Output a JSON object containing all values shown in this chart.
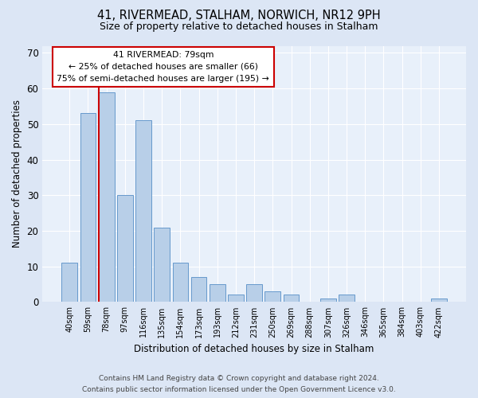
{
  "title1": "41, RIVERMEAD, STALHAM, NORWICH, NR12 9PH",
  "title2": "Size of property relative to detached houses in Stalham",
  "xlabel": "Distribution of detached houses by size in Stalham",
  "ylabel": "Number of detached properties",
  "categories": [
    "40sqm",
    "59sqm",
    "78sqm",
    "97sqm",
    "116sqm",
    "135sqm",
    "154sqm",
    "173sqm",
    "193sqm",
    "212sqm",
    "231sqm",
    "250sqm",
    "269sqm",
    "288sqm",
    "307sqm",
    "326sqm",
    "346sqm",
    "365sqm",
    "384sqm",
    "403sqm",
    "422sqm"
  ],
  "values": [
    11,
    53,
    59,
    30,
    51,
    21,
    11,
    7,
    5,
    2,
    5,
    3,
    2,
    0,
    1,
    2,
    0,
    0,
    0,
    0,
    1
  ],
  "bar_color": "#b8cfe8",
  "bar_edge_color": "#6699cc",
  "vline_x_index": 2,
  "vline_color": "#cc0000",
  "annotation_title": "41 RIVERMEAD: 79sqm",
  "annotation_line1": "← 25% of detached houses are smaller (66)",
  "annotation_line2": "75% of semi-detached houses are larger (195) →",
  "annotation_box_color": "#ffffff",
  "annotation_box_edge": "#cc0000",
  "ylim": [
    0,
    72
  ],
  "yticks": [
    0,
    10,
    20,
    30,
    40,
    50,
    60,
    70
  ],
  "footnote1": "Contains HM Land Registry data © Crown copyright and database right 2024.",
  "footnote2": "Contains public sector information licensed under the Open Government Licence v3.0.",
  "bg_color": "#dce6f5",
  "plot_bg_color": "#e8f0fa"
}
